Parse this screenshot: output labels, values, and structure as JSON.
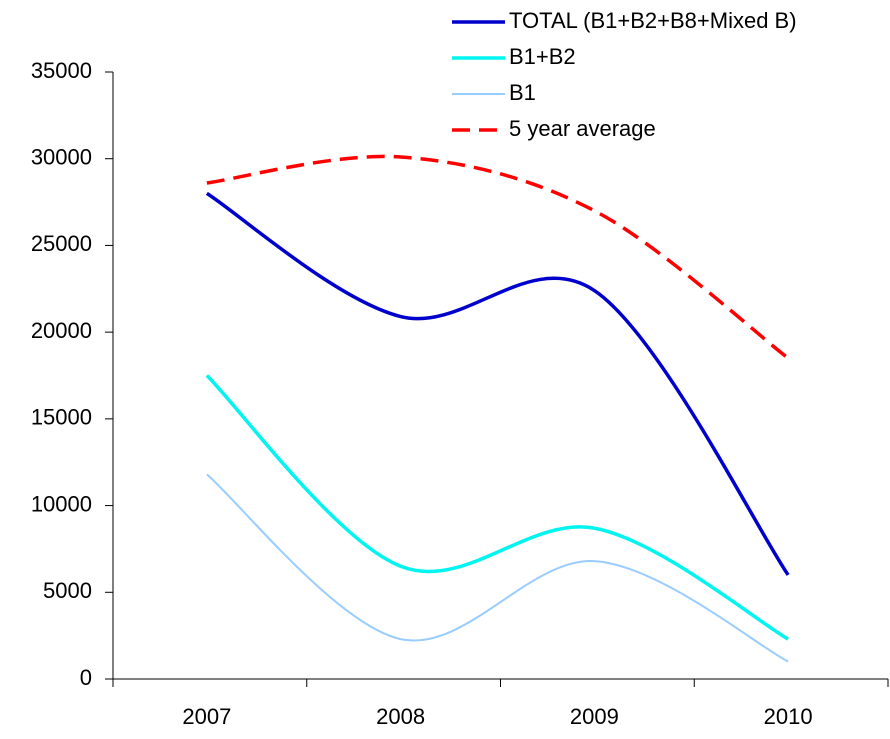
{
  "chart_data": {
    "type": "line",
    "smooth": true,
    "categories": [
      "2007",
      "2008",
      "2009",
      "2010"
    ],
    "series": [
      {
        "name": "TOTAL (B1+B2+B8+Mixed B)",
        "color": "#0000cc",
        "values": [
          28000,
          20900,
          22400,
          6000
        ]
      },
      {
        "name": "B1+B2",
        "color": "#00f5f0",
        "values": [
          17500,
          6500,
          8700,
          2300
        ]
      },
      {
        "name": "B1",
        "color": "#99ccff",
        "values": [
          11800,
          2300,
          6800,
          1000
        ]
      },
      {
        "name": "5 year average",
        "color": "#ff0000",
        "dashed": true,
        "values": [
          28600,
          30100,
          27000,
          18500
        ]
      }
    ],
    "ylim": [
      0,
      35000
    ],
    "yticks": [
      0,
      5000,
      10000,
      15000,
      20000,
      25000,
      30000,
      35000
    ],
    "grid": false,
    "legend": "top-right"
  }
}
